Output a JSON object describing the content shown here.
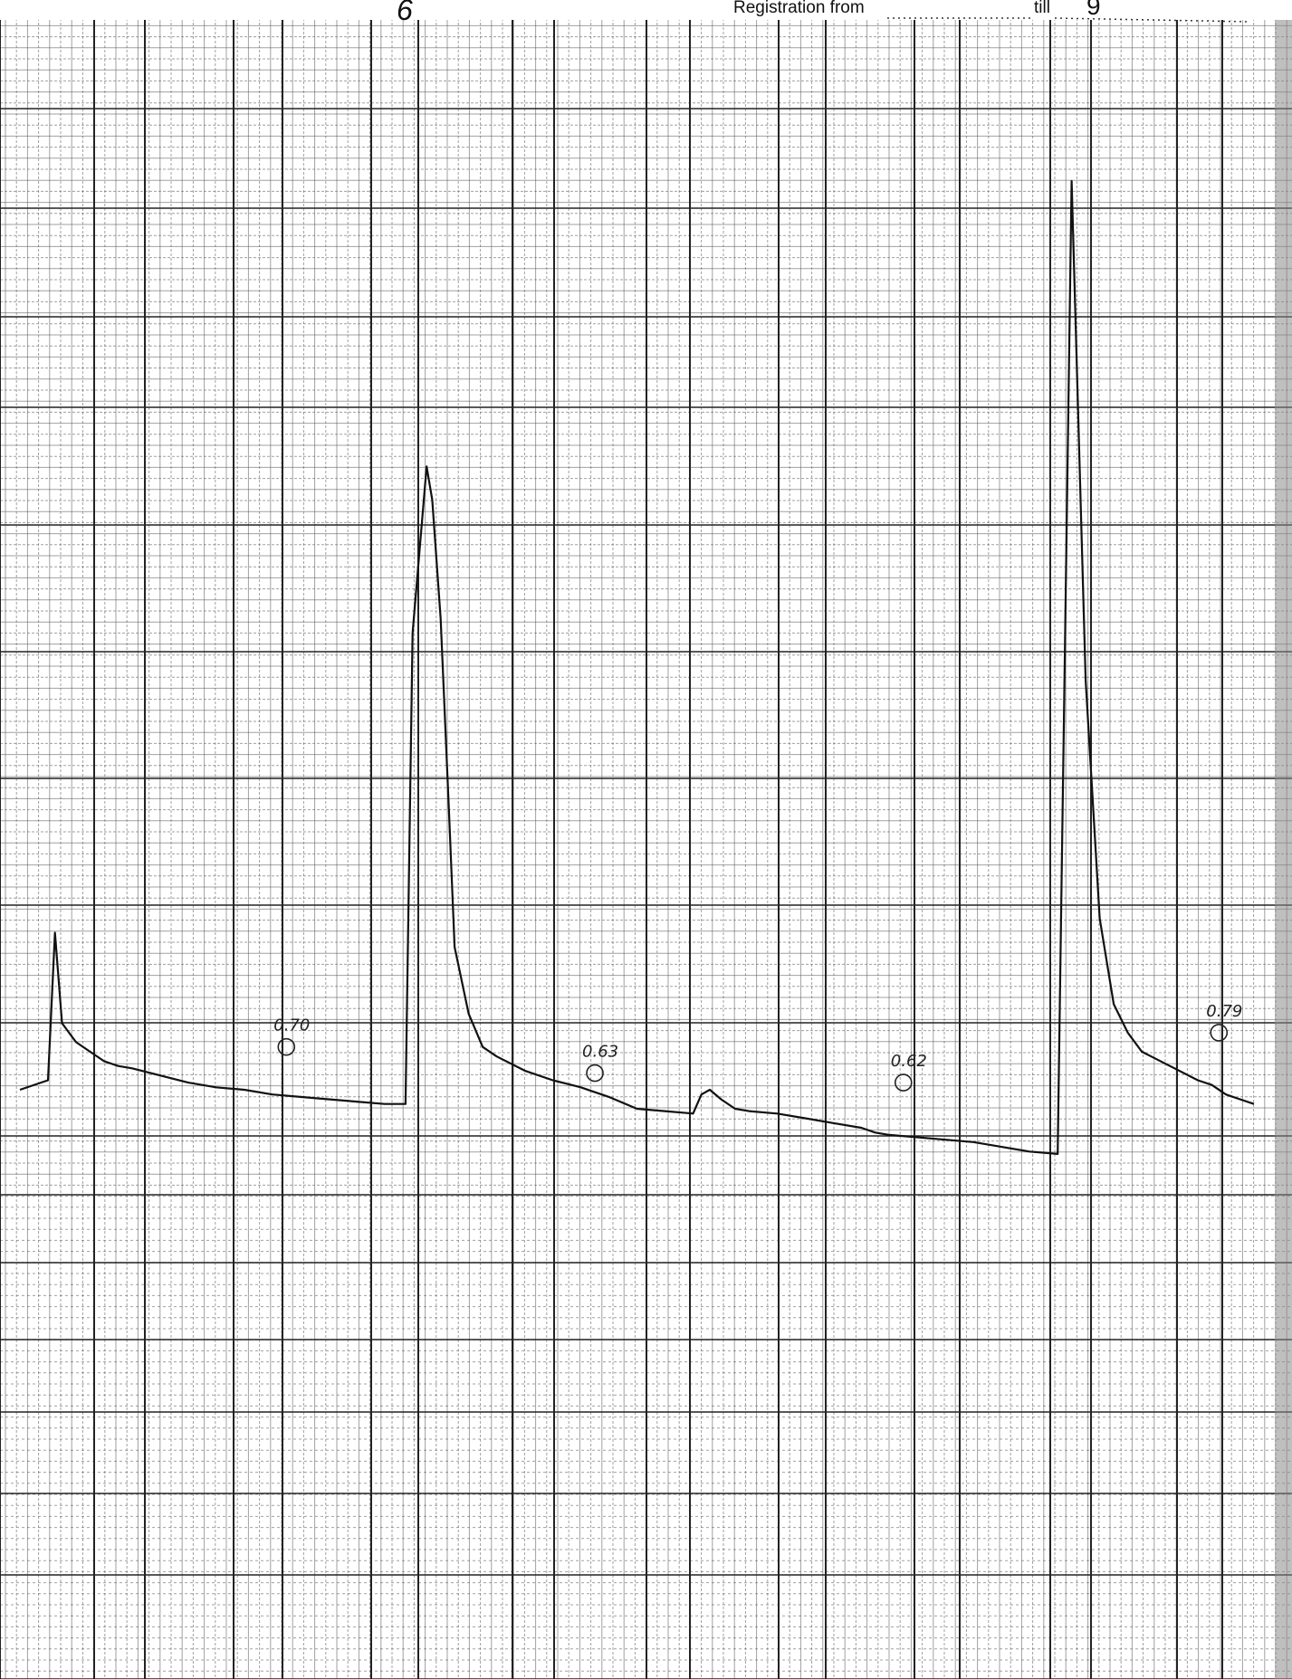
{
  "header": {
    "registration_label": "Registration from",
    "till_label": "till",
    "till_value": "9",
    "corner_mark": "6"
  },
  "chart_data": {
    "type": "line",
    "title": "",
    "xlabel": "",
    "ylabel": "",
    "grid": true,
    "trace": {
      "color": "#111111",
      "x": [
        0,
        2,
        2.5,
        3,
        3.5,
        4,
        5,
        6,
        7,
        8,
        10,
        12,
        14,
        16,
        18,
        20,
        22,
        24,
        26,
        27.5,
        28,
        29,
        29.4,
        30,
        30.6,
        31,
        32,
        33,
        34,
        36,
        38,
        40,
        42,
        44,
        46,
        48,
        48.6,
        49.2,
        50,
        51,
        52,
        54,
        56,
        58,
        60,
        61,
        62,
        64,
        66,
        68,
        70,
        72,
        74,
        75,
        76,
        77,
        78,
        79,
        80,
        82,
        84,
        85,
        86,
        87,
        88
      ],
      "y": [
        0.4,
        0.6,
        3.7,
        1.8,
        1.6,
        1.4,
        1.2,
        1.0,
        0.9,
        0.85,
        0.7,
        0.55,
        0.45,
        0.4,
        0.3,
        0.25,
        0.2,
        0.15,
        0.1,
        0.1,
        10.0,
        13.5,
        12.8,
        10.3,
        6.2,
        3.4,
        2.0,
        1.3,
        1.1,
        0.8,
        0.6,
        0.45,
        0.25,
        0.0,
        -0.05,
        -0.1,
        0.3,
        0.4,
        0.2,
        0.0,
        -0.05,
        -0.1,
        -0.2,
        -0.3,
        -0.4,
        -0.5,
        -0.55,
        -0.6,
        -0.65,
        -0.7,
        -0.8,
        -0.9,
        -0.95,
        19.5,
        9.0,
        4.0,
        2.2,
        1.6,
        1.2,
        0.9,
        0.6,
        0.5,
        0.3,
        0.2,
        0.1
      ]
    },
    "annotations": [
      {
        "text": "0.70",
        "x": 19.0,
        "y": 1.3
      },
      {
        "text": "0.63",
        "x": 41.0,
        "y": 0.75
      },
      {
        "text": "0.62",
        "x": 63.0,
        "y": 0.55
      },
      {
        "text": "0.79",
        "x": 85.5,
        "y": 1.6
      }
    ]
  }
}
